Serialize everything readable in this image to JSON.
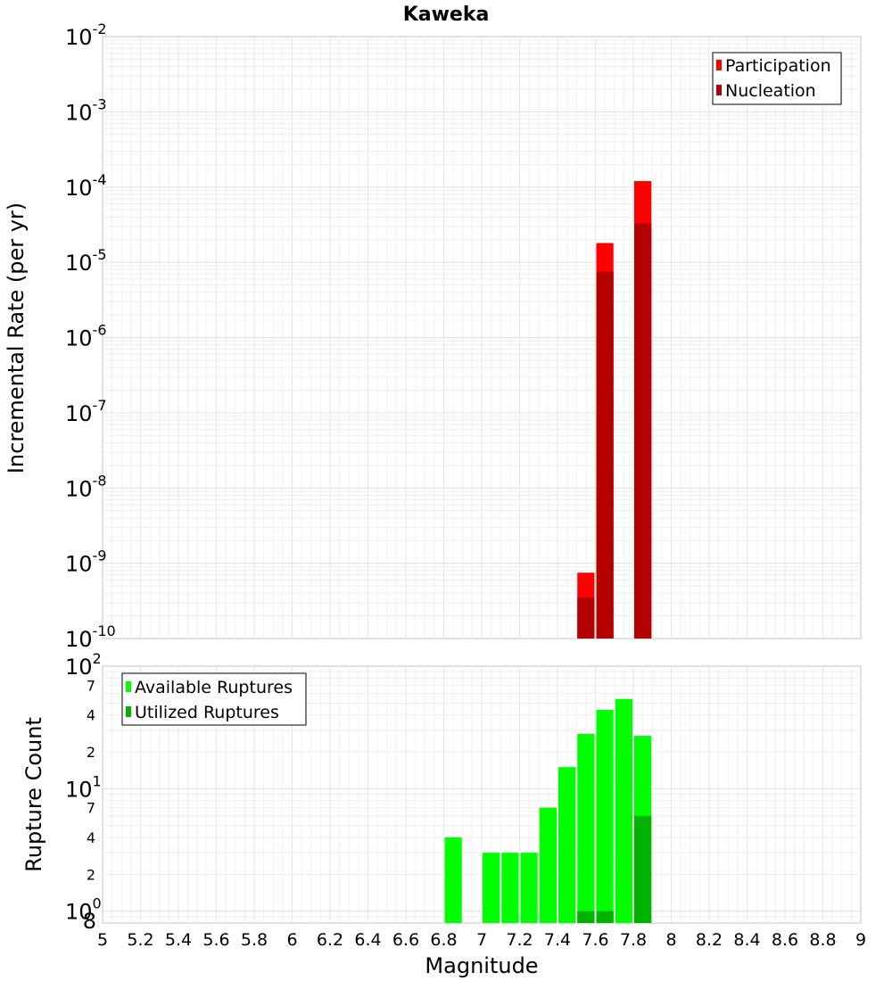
{
  "chart_data": [
    {
      "type": "bar",
      "title": "Kaweka",
      "ylabel": "Incremental Rate (per yr)",
      "yscale": "log",
      "ylim": [
        1e-10,
        0.01
      ],
      "ytick_labels": [
        {
          "base": "10",
          "exp": "-10"
        },
        {
          "base": "10",
          "exp": "-9"
        },
        {
          "base": "10",
          "exp": "-8"
        },
        {
          "base": "10",
          "exp": "-7"
        },
        {
          "base": "10",
          "exp": "-6"
        },
        {
          "base": "10",
          "exp": "-5"
        },
        {
          "base": "10",
          "exp": "-4"
        },
        {
          "base": "10",
          "exp": "-3"
        },
        {
          "base": "10",
          "exp": "-2"
        }
      ],
      "xlim": [
        5,
        9
      ],
      "bin_width": 0.1,
      "grid": true,
      "legend_position": "top-right",
      "series": [
        {
          "name": "Participation",
          "color": "#ff0000",
          "x": [
            7.55,
            7.65,
            7.85
          ],
          "values": [
            7.5e-10,
            1.8e-05,
            0.00012
          ]
        },
        {
          "name": "Nucleation",
          "color": "#b30000",
          "x": [
            7.55,
            7.65,
            7.85
          ],
          "values": [
            3.5e-10,
            7.5e-06,
            3.3e-05
          ]
        }
      ]
    },
    {
      "type": "bar",
      "ylabel": "Rupture Count",
      "yscale": "log",
      "ylim": [
        0.8,
        100
      ],
      "ytick_labels": [
        {
          "base": "10",
          "exp": "0"
        },
        {
          "base": "10",
          "exp": "1"
        },
        {
          "base": "10",
          "exp": "2"
        }
      ],
      "yminor_labels": [
        {
          "value": 0.8,
          "label": "8"
        },
        {
          "value": 2,
          "label": "2"
        },
        {
          "value": 4,
          "label": "4"
        },
        {
          "value": 7,
          "label": "7"
        },
        {
          "value": 20,
          "label": "2"
        },
        {
          "value": 40,
          "label": "4"
        },
        {
          "value": 70,
          "label": "7"
        }
      ],
      "xlabel": "Magnitude",
      "xlim": [
        5,
        9
      ],
      "xticks": [
        "5",
        "5.2",
        "5.4",
        "5.6",
        "5.8",
        "6",
        "6.2",
        "6.4",
        "6.6",
        "6.8",
        "7",
        "7.2",
        "7.4",
        "7.6",
        "7.8",
        "8",
        "8.2",
        "8.4",
        "8.6",
        "8.8",
        "9"
      ],
      "bin_width": 0.1,
      "grid": true,
      "legend_position": "top-left",
      "series": [
        {
          "name": "Available Ruptures",
          "color": "#00ff00",
          "x": [
            6.85,
            7.05,
            7.15,
            7.25,
            7.35,
            7.45,
            7.55,
            7.65,
            7.75,
            7.85
          ],
          "values": [
            4,
            3,
            3,
            3,
            7,
            15,
            28,
            44,
            54,
            27
          ]
        },
        {
          "name": "Utilized Ruptures",
          "color": "#00b300",
          "x": [
            7.55,
            7.65,
            7.85
          ],
          "values": [
            1,
            1,
            6
          ]
        }
      ]
    }
  ]
}
